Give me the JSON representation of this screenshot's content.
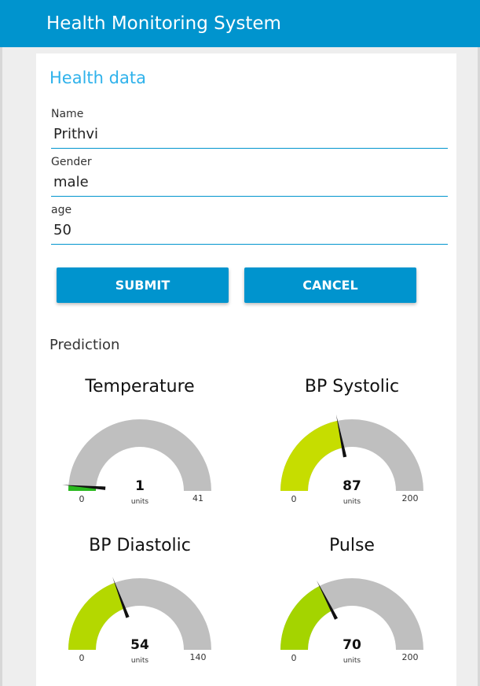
{
  "header": {
    "title": "Health Monitoring System",
    "color": "#0094ce"
  },
  "form": {
    "title": "Health data",
    "fields": [
      {
        "label": "Name",
        "value": "Prithvi"
      },
      {
        "label": "Gender",
        "value": "male"
      },
      {
        "label": "age",
        "value": "50"
      }
    ],
    "buttons": {
      "submit": "SUBMIT",
      "cancel": "CANCEL"
    }
  },
  "prediction": {
    "label": "Prediction",
    "gauges": [
      {
        "title": "Temperature",
        "value": 1,
        "min": 0,
        "max": 41,
        "units": "units",
        "color": "#2ab91f"
      },
      {
        "title": "BP Systolic",
        "value": 87,
        "min": 0,
        "max": 200,
        "units": "units",
        "color": "#c6dd00"
      },
      {
        "title": "BP Diastolic",
        "value": 54,
        "min": 0,
        "max": 140,
        "units": "units",
        "color": "#b4d800"
      },
      {
        "title": "Pulse",
        "value": 70,
        "min": 0,
        "max": 200,
        "units": "units",
        "color": "#a4d400"
      }
    ]
  }
}
